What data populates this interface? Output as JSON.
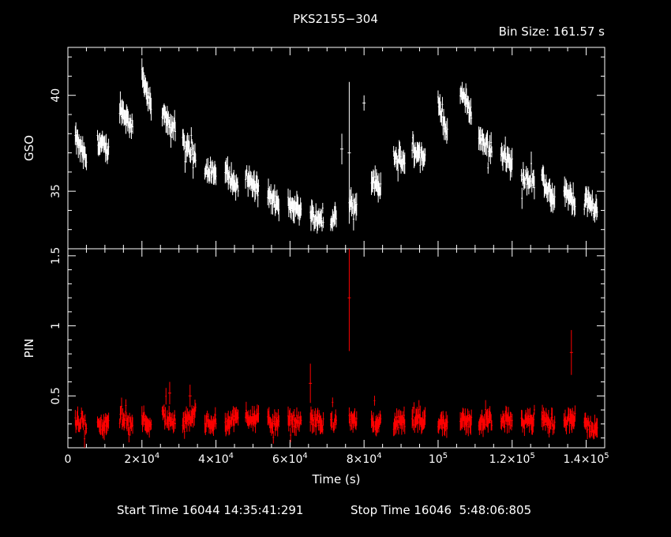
{
  "title": "PKS2155−304",
  "bin_size_label": "Bin Size:",
  "bin_size_value": "161.57 s",
  "start_label": "Start Time",
  "start_value": "16044 14:35:41:291",
  "stop_label": "Stop Time",
  "stop_value": "16046  5:48:06:805",
  "colors": {
    "gso": "#ffffff",
    "pin": "#ff0000",
    "axes": "#ffffff",
    "background": "#000000"
  },
  "chart_data": [
    {
      "type": "scatter",
      "ylabel": "GSO",
      "xlabel": "",
      "xlim": [
        0,
        145000
      ],
      "ylim": [
        32.0,
        42.5
      ],
      "yticks": [
        35,
        40
      ],
      "ytick_labels": [
        "35",
        "40"
      ],
      "grid": false,
      "segments": [
        {
          "x": [
            2000,
            5000
          ],
          "y": [
            37.8,
            36.6
          ]
        },
        {
          "x": [
            8000,
            11000
          ],
          "y": [
            37.6,
            37.1
          ]
        },
        {
          "x": [
            14000,
            17500
          ],
          "y": [
            39.4,
            38.3
          ]
        },
        {
          "x": [
            20000,
            22500
          ],
          "y": [
            41.2,
            39.3
          ]
        },
        {
          "x": [
            25500,
            29000
          ],
          "y": [
            39.0,
            38.3
          ]
        },
        {
          "x": [
            31000,
            34500
          ],
          "y": [
            37.5,
            36.9
          ]
        },
        {
          "x": [
            37000,
            40000
          ],
          "y": [
            36.2,
            35.8
          ]
        },
        {
          "x": [
            42500,
            46000
          ],
          "y": [
            36.1,
            35.1
          ]
        },
        {
          "x": [
            48000,
            51500
          ],
          "y": [
            35.7,
            35.1
          ]
        },
        {
          "x": [
            54000,
            57000
          ],
          "y": [
            34.9,
            34.1
          ]
        },
        {
          "x": [
            59500,
            63000
          ],
          "y": [
            34.4,
            34.0
          ]
        },
        {
          "x": [
            65500,
            69000
          ],
          "y": [
            33.8,
            33.5
          ]
        },
        {
          "x": [
            71000,
            72500
          ],
          "y": [
            33.2,
            33.9
          ]
        },
        {
          "x": [
            76000,
            78000
          ],
          "y": [
            34.6,
            34.0
          ]
        },
        {
          "x": [
            82000,
            84500
          ],
          "y": [
            35.6,
            35.2
          ]
        },
        {
          "x": [
            88000,
            91000
          ],
          "y": [
            37.0,
            36.4
          ]
        },
        {
          "x": [
            93000,
            96500
          ],
          "y": [
            37.2,
            36.6
          ]
        },
        {
          "x": [
            100000,
            102500
          ],
          "y": [
            39.6,
            38.0
          ]
        },
        {
          "x": [
            106000,
            109000
          ],
          "y": [
            40.3,
            39.1
          ]
        },
        {
          "x": [
            111000,
            114500
          ],
          "y": [
            37.8,
            37.2
          ]
        },
        {
          "x": [
            117000,
            120000
          ],
          "y": [
            36.9,
            36.4
          ]
        },
        {
          "x": [
            122500,
            126000
          ],
          "y": [
            35.9,
            35.4
          ]
        },
        {
          "x": [
            128000,
            131500
          ],
          "y": [
            35.6,
            34.5
          ]
        },
        {
          "x": [
            134000,
            137000
          ],
          "y": [
            35.1,
            34.3
          ]
        },
        {
          "x": [
            139500,
            143000
          ],
          "y": [
            34.6,
            34.0
          ]
        }
      ],
      "outliers": [
        {
          "x": 76000,
          "y": 37.0,
          "err": 3.7
        },
        {
          "x": 80000,
          "y": 39.6,
          "err": 0.4
        },
        {
          "x": 74000,
          "y": 37.2,
          "err": 0.8
        }
      ]
    },
    {
      "type": "scatter",
      "ylabel": "PIN",
      "xlabel": "Time (s)",
      "xlim": [
        0,
        145000
      ],
      "ylim": [
        0.13,
        1.55
      ],
      "yticks": [
        0.5,
        1,
        1.5
      ],
      "ytick_labels": [
        "0.5",
        "1",
        "1.5"
      ],
      "xticks": [
        0,
        20000,
        40000,
        60000,
        80000,
        100000,
        120000,
        140000
      ],
      "xtick_labels": [
        {
          "m": "0",
          "e": ""
        },
        {
          "m": "2×10",
          "e": "4"
        },
        {
          "m": "4×10",
          "e": "4"
        },
        {
          "m": "6×10",
          "e": "4"
        },
        {
          "m": "8×10",
          "e": "4"
        },
        {
          "m": "10",
          "e": "5"
        },
        {
          "m": "1.2×10",
          "e": "5"
        },
        {
          "m": "1.4×10",
          "e": "5"
        }
      ],
      "grid": false,
      "segments": [
        {
          "x": [
            2000,
            5000
          ],
          "y": [
            0.32,
            0.3
          ]
        },
        {
          "x": [
            8000,
            11000
          ],
          "y": [
            0.28,
            0.31
          ]
        },
        {
          "x": [
            14000,
            17500
          ],
          "y": [
            0.34,
            0.32
          ]
        },
        {
          "x": [
            20000,
            22500
          ],
          "y": [
            0.33,
            0.3
          ]
        },
        {
          "x": [
            25500,
            29000
          ],
          "y": [
            0.36,
            0.32
          ]
        },
        {
          "x": [
            31000,
            34500
          ],
          "y": [
            0.3,
            0.38
          ]
        },
        {
          "x": [
            37000,
            40000
          ],
          "y": [
            0.3,
            0.32
          ]
        },
        {
          "x": [
            42500,
            46000
          ],
          "y": [
            0.32,
            0.34
          ]
        },
        {
          "x": [
            48000,
            51500
          ],
          "y": [
            0.36,
            0.33
          ]
        },
        {
          "x": [
            54000,
            57000
          ],
          "y": [
            0.32,
            0.3
          ]
        },
        {
          "x": [
            59500,
            63000
          ],
          "y": [
            0.33,
            0.31
          ]
        },
        {
          "x": [
            65500,
            69000
          ],
          "y": [
            0.34,
            0.3
          ]
        },
        {
          "x": [
            71000,
            72500
          ],
          "y": [
            0.3,
            0.33
          ]
        },
        {
          "x": [
            76000,
            78000
          ],
          "y": [
            0.32,
            0.3
          ]
        },
        {
          "x": [
            82000,
            84500
          ],
          "y": [
            0.33,
            0.31
          ]
        },
        {
          "x": [
            88000,
            91000
          ],
          "y": [
            0.3,
            0.32
          ]
        },
        {
          "x": [
            93000,
            96500
          ],
          "y": [
            0.31,
            0.33
          ]
        },
        {
          "x": [
            100000,
            102500
          ],
          "y": [
            0.32,
            0.3
          ]
        },
        {
          "x": [
            106000,
            109000
          ],
          "y": [
            0.34,
            0.31
          ]
        },
        {
          "x": [
            111000,
            114500
          ],
          "y": [
            0.31,
            0.33
          ]
        },
        {
          "x": [
            117000,
            120000
          ],
          "y": [
            0.33,
            0.31
          ]
        },
        {
          "x": [
            122500,
            126000
          ],
          "y": [
            0.3,
            0.32
          ]
        },
        {
          "x": [
            128000,
            131500
          ],
          "y": [
            0.34,
            0.3
          ]
        },
        {
          "x": [
            134000,
            137000
          ],
          "y": [
            0.32,
            0.33
          ]
        },
        {
          "x": [
            139500,
            143000
          ],
          "y": [
            0.31,
            0.25
          ]
        }
      ],
      "outliers": [
        {
          "x": 76000,
          "y": 1.2,
          "err": 0.38
        },
        {
          "x": 65500,
          "y": 0.59,
          "err": 0.14
        },
        {
          "x": 136000,
          "y": 0.81,
          "err": 0.16
        },
        {
          "x": 27500,
          "y": 0.52,
          "err": 0.08
        },
        {
          "x": 33000,
          "y": 0.5,
          "err": 0.08
        }
      ]
    }
  ]
}
